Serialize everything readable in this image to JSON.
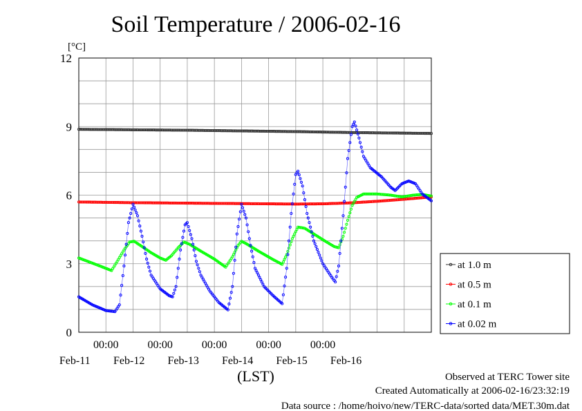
{
  "chart_data": {
    "type": "line",
    "title": "Soil Temperature / 2006-02-16",
    "ylabel": "[°C]",
    "xlabel": "(LST)",
    "ylim": [
      0,
      12
    ],
    "yticks": [
      0,
      3,
      6,
      9,
      12
    ],
    "xlim": [
      "2006-02-10T12:00",
      "2006-02-16T24:00"
    ],
    "xticks": [
      {
        "date": "2006-02-11",
        "time_label": "00:00",
        "date_label": "Feb-11"
      },
      {
        "date": "2006-02-12",
        "time_label": "00:00",
        "date_label": "Feb-12"
      },
      {
        "date": "2006-02-13",
        "time_label": "00:00",
        "date_label": "Feb-13"
      },
      {
        "date": "2006-02-14",
        "time_label": "00:00",
        "date_label": "Feb-14"
      },
      {
        "date": "2006-02-15",
        "time_label": "00:00",
        "date_label": "Feb-15"
      },
      {
        "date": "2006-02-16",
        "time_label": "",
        "date_label": "Feb-16"
      }
    ],
    "grid": true,
    "legend_position": "right",
    "series": [
      {
        "name": "at 1.0 m",
        "color": "#333333",
        "points": [
          [
            "2006-02-10T12:00",
            8.88
          ],
          [
            "2006-02-11T12:00",
            8.86
          ],
          [
            "2006-02-12T12:00",
            8.84
          ],
          [
            "2006-02-13T12:00",
            8.81
          ],
          [
            "2006-02-14T12:00",
            8.78
          ],
          [
            "2006-02-15T12:00",
            8.74
          ],
          [
            "2006-02-16T24:00",
            8.7
          ]
        ]
      },
      {
        "name": "at 0.5 m",
        "color": "#ff0000",
        "points": [
          [
            "2006-02-10T12:00",
            5.7
          ],
          [
            "2006-02-11T12:00",
            5.67
          ],
          [
            "2006-02-12T12:00",
            5.65
          ],
          [
            "2006-02-13T12:00",
            5.63
          ],
          [
            "2006-02-14T12:00",
            5.61
          ],
          [
            "2006-02-15T00:00",
            5.62
          ],
          [
            "2006-02-15T12:00",
            5.66
          ],
          [
            "2006-02-16T00:00",
            5.73
          ],
          [
            "2006-02-16T12:00",
            5.82
          ],
          [
            "2006-02-16T24:00",
            5.92
          ]
        ]
      },
      {
        "name": "at 0.1 m",
        "color": "#00ff00",
        "points": [
          [
            "2006-02-10T12:00",
            3.25
          ],
          [
            "2006-02-10T20:00",
            2.95
          ],
          [
            "2006-02-11T02:30",
            2.7
          ],
          [
            "2006-02-11T05:00",
            3.1
          ],
          [
            "2006-02-11T08:00",
            3.6
          ],
          [
            "2006-02-11T10:30",
            3.95
          ],
          [
            "2006-02-11T12:30",
            3.98
          ],
          [
            "2006-02-11T16:00",
            3.75
          ],
          [
            "2006-02-11T20:00",
            3.48
          ],
          [
            "2006-02-12T00:00",
            3.25
          ],
          [
            "2006-02-12T02:30",
            3.15
          ],
          [
            "2006-02-12T05:00",
            3.35
          ],
          [
            "2006-02-12T08:00",
            3.7
          ],
          [
            "2006-02-12T10:30",
            3.95
          ],
          [
            "2006-02-12T13:00",
            3.85
          ],
          [
            "2006-02-12T18:00",
            3.55
          ],
          [
            "2006-02-12T24:00",
            3.2
          ],
          [
            "2006-02-13T05:00",
            2.85
          ],
          [
            "2006-02-13T08:00",
            3.3
          ],
          [
            "2006-02-13T10:30",
            3.8
          ],
          [
            "2006-02-13T12:00",
            3.98
          ],
          [
            "2006-02-13T14:00",
            3.88
          ],
          [
            "2006-02-13T20:00",
            3.52
          ],
          [
            "2006-02-14T02:00",
            3.18
          ],
          [
            "2006-02-14T06:00",
            2.97
          ],
          [
            "2006-02-14T08:00",
            3.4
          ],
          [
            "2006-02-14T10:30",
            4.1
          ],
          [
            "2006-02-14T13:00",
            4.6
          ],
          [
            "2006-02-14T16:00",
            4.55
          ],
          [
            "2006-02-14T20:00",
            4.3
          ],
          [
            "2006-02-15T00:00",
            4.05
          ],
          [
            "2006-02-15T05:00",
            3.75
          ],
          [
            "2006-02-15T07:00",
            3.7
          ],
          [
            "2006-02-15T09:00",
            4.2
          ],
          [
            "2006-02-15T11:00",
            4.9
          ],
          [
            "2006-02-15T13:00",
            5.55
          ],
          [
            "2006-02-15T15:00",
            5.9
          ],
          [
            "2006-02-15T18:00",
            6.05
          ],
          [
            "2006-02-15T24:00",
            6.05
          ],
          [
            "2006-02-16T06:00",
            6.0
          ],
          [
            "2006-02-16T11:00",
            5.92
          ],
          [
            "2006-02-16T16:00",
            6.0
          ],
          [
            "2006-02-16T20:00",
            6.03
          ],
          [
            "2006-02-16T24:00",
            5.96
          ]
        ]
      },
      {
        "name": "at 0.02 m",
        "color": "#0000ff",
        "points": [
          [
            "2006-02-10T12:00",
            1.55
          ],
          [
            "2006-02-10T18:00",
            1.2
          ],
          [
            "2006-02-11T00:00",
            0.95
          ],
          [
            "2006-02-11T04:00",
            0.9
          ],
          [
            "2006-02-11T06:00",
            1.2
          ],
          [
            "2006-02-11T08:00",
            2.9
          ],
          [
            "2006-02-11T10:00",
            4.8
          ],
          [
            "2006-02-11T12:00",
            5.6
          ],
          [
            "2006-02-11T14:00",
            5.1
          ],
          [
            "2006-02-11T16:00",
            4.2
          ],
          [
            "2006-02-11T18:00",
            3.2
          ],
          [
            "2006-02-11T20:00",
            2.5
          ],
          [
            "2006-02-11T24:00",
            1.9
          ],
          [
            "2006-02-12T04:00",
            1.6
          ],
          [
            "2006-02-12T05:30",
            1.55
          ],
          [
            "2006-02-12T07:00",
            2.0
          ],
          [
            "2006-02-12T09:00",
            3.6
          ],
          [
            "2006-02-12T11:00",
            4.7
          ],
          [
            "2006-02-12T12:00",
            4.8
          ],
          [
            "2006-02-12T14:00",
            4.1
          ],
          [
            "2006-02-12T16:00",
            3.1
          ],
          [
            "2006-02-12T18:00",
            2.5
          ],
          [
            "2006-02-12T22:00",
            1.8
          ],
          [
            "2006-02-13T02:00",
            1.3
          ],
          [
            "2006-02-13T06:00",
            0.98
          ],
          [
            "2006-02-13T08:00",
            2.0
          ],
          [
            "2006-02-13T10:00",
            4.3
          ],
          [
            "2006-02-13T12:00",
            5.6
          ],
          [
            "2006-02-13T14:00",
            5.0
          ],
          [
            "2006-02-13T16:00",
            3.8
          ],
          [
            "2006-02-13T18:00",
            2.8
          ],
          [
            "2006-02-13T22:00",
            2.0
          ],
          [
            "2006-02-14T02:00",
            1.6
          ],
          [
            "2006-02-14T06:00",
            1.25
          ],
          [
            "2006-02-14T08:00",
            2.8
          ],
          [
            "2006-02-14T10:00",
            5.2
          ],
          [
            "2006-02-14T12:00",
            6.9
          ],
          [
            "2006-02-14T13:00",
            7.05
          ],
          [
            "2006-02-14T15:00",
            6.4
          ],
          [
            "2006-02-14T17:00",
            5.2
          ],
          [
            "2006-02-14T20:00",
            4.0
          ],
          [
            "2006-02-15T00:00",
            3.0
          ],
          [
            "2006-02-15T04:00",
            2.4
          ],
          [
            "2006-02-15T05:30",
            2.2
          ],
          [
            "2006-02-15T07:00",
            2.9
          ],
          [
            "2006-02-15T09:00",
            5.1
          ],
          [
            "2006-02-15T11:00",
            7.6
          ],
          [
            "2006-02-15T13:00",
            9.0
          ],
          [
            "2006-02-15T14:00",
            9.2
          ],
          [
            "2006-02-15T16:00",
            8.5
          ],
          [
            "2006-02-15T18:00",
            7.7
          ],
          [
            "2006-02-15T21:00",
            7.2
          ],
          [
            "2006-02-16T02:00",
            6.8
          ],
          [
            "2006-02-16T06:00",
            6.35
          ],
          [
            "2006-02-16T08:00",
            6.2
          ],
          [
            "2006-02-16T11:00",
            6.5
          ],
          [
            "2006-02-16T14:00",
            6.62
          ],
          [
            "2006-02-16T17:00",
            6.5
          ],
          [
            "2006-02-16T20:00",
            6.05
          ],
          [
            "2006-02-16T24:00",
            5.75
          ]
        ]
      }
    ]
  },
  "footer": {
    "line1": "Observed at TERC Tower site",
    "line2": "Created Automatically at 2006-02-16/23:32:19",
    "line3": "Data source : /home/hoivo/new/TERC-data/sorted  data/MET.30m.dat"
  }
}
